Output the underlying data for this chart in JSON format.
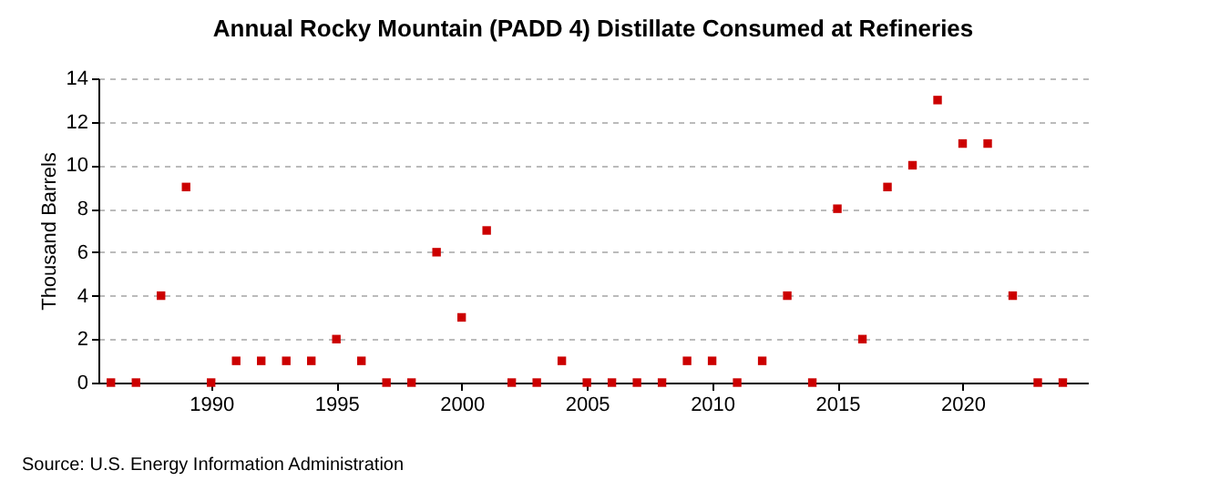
{
  "chart_data": {
    "type": "scatter",
    "title": "Annual Rocky Mountain (PADD 4) Distillate Consumed at Refineries",
    "ylabel": "Thousand Barrels",
    "x": [
      1986,
      1987,
      1988,
      1989,
      1990,
      1991,
      1992,
      1993,
      1994,
      1995,
      1996,
      1997,
      1998,
      1999,
      2000,
      2001,
      2002,
      2003,
      2004,
      2005,
      2006,
      2007,
      2008,
      2009,
      2010,
      2011,
      2012,
      2013,
      2014,
      2015,
      2016,
      2017,
      2018,
      2019,
      2020,
      2021,
      2022,
      2023,
      2024
    ],
    "series": [
      {
        "color": "#cc0000",
        "values": [
          0,
          0,
          4,
          9,
          0,
          1,
          1,
          1,
          1,
          2,
          1,
          0,
          0,
          6,
          3,
          7,
          0,
          0,
          1,
          0,
          0,
          0,
          0,
          1,
          1,
          0,
          1,
          4,
          0,
          8,
          2,
          9,
          10,
          13,
          11,
          11,
          4,
          0,
          0
        ]
      }
    ],
    "xlim": [
      1985.5,
      2025
    ],
    "xticks": [
      1990,
      1995,
      2000,
      2005,
      2010,
      2015,
      2020
    ],
    "ylim": [
      0,
      14
    ],
    "yticks": [
      0,
      2,
      4,
      6,
      8,
      10,
      12,
      14
    ],
    "grid": "y",
    "marker": "square",
    "annotations": [
      "Source: U.S. Energy Information Administration"
    ]
  }
}
